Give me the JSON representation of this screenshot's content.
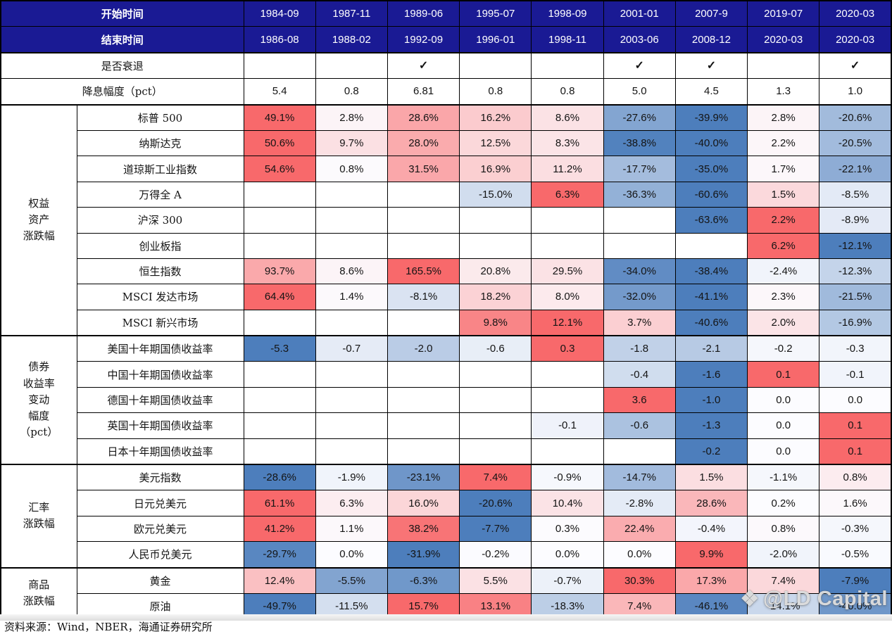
{
  "chart_data": {
    "type": "heatmap-table",
    "title": "",
    "header": {
      "start_label": "开始时间",
      "end_label": "结束时间",
      "recession_label": "是否衰退",
      "cut_label": "降息幅度（pct）",
      "check_glyph": "✓"
    },
    "periods": [
      {
        "start": "1984-09",
        "end": "1986-08",
        "recession": false,
        "cut": "5.4"
      },
      {
        "start": "1987-11",
        "end": "1988-02",
        "recession": false,
        "cut": "0.8"
      },
      {
        "start": "1989-06",
        "end": "1992-09",
        "recession": true,
        "cut": "6.81"
      },
      {
        "start": "1995-07",
        "end": "1996-01",
        "recession": false,
        "cut": "0.8"
      },
      {
        "start": "1998-09",
        "end": "1998-11",
        "recession": false,
        "cut": "0.8"
      },
      {
        "start": "2001-01",
        "end": "2003-06",
        "recession": true,
        "cut": "5.0"
      },
      {
        "start": "2007-9",
        "end": "2008-12",
        "recession": true,
        "cut": "4.5"
      },
      {
        "start": "2019-07",
        "end": "2020-03",
        "recession": false,
        "cut": "1.3"
      },
      {
        "start": "2020-03",
        "end": "2020-03",
        "recession": true,
        "cut": "1.0"
      }
    ],
    "sections": [
      {
        "group": "权益\n资产\n涨跌幅",
        "rows": [
          {
            "label": "标普 500",
            "values": [
              "49.1%",
              "2.8%",
              "28.6%",
              "16.2%",
              "8.6%",
              "-27.6%",
              "-39.9%",
              "2.8%",
              "-20.6%"
            ]
          },
          {
            "label": "纳斯达克",
            "values": [
              "50.6%",
              "9.7%",
              "28.0%",
              "12.5%",
              "8.3%",
              "-38.8%",
              "-40.0%",
              "2.2%",
              "-20.5%"
            ]
          },
          {
            "label": "道琼斯工业指数",
            "values": [
              "54.6%",
              "0.8%",
              "31.5%",
              "16.9%",
              "11.2%",
              "-17.7%",
              "-35.0%",
              "1.7%",
              "-22.1%"
            ]
          },
          {
            "label": "万得全 A",
            "values": [
              "",
              "",
              "",
              "-15.0%",
              "6.3%",
              "-36.3%",
              "-60.6%",
              "1.5%",
              "-8.5%"
            ]
          },
          {
            "label": "沪深 300",
            "values": [
              "",
              "",
              "",
              "",
              "",
              "",
              "-63.6%",
              "2.2%",
              "-8.9%"
            ]
          },
          {
            "label": "创业板指",
            "values": [
              "",
              "",
              "",
              "",
              "",
              "",
              "",
              "6.2%",
              "-12.1%"
            ]
          },
          {
            "label": "恒生指数",
            "values": [
              "93.7%",
              "8.6%",
              "165.5%",
              "20.8%",
              "29.5%",
              "-34.0%",
              "-38.4%",
              "-2.4%",
              "-12.3%"
            ]
          },
          {
            "label": "MSCI 发达市场",
            "values": [
              "64.4%",
              "1.4%",
              "-8.1%",
              "18.2%",
              "8.0%",
              "-32.0%",
              "-41.1%",
              "2.3%",
              "-21.5%"
            ]
          },
          {
            "label": "MSCI 新兴市场",
            "values": [
              "",
              "",
              "",
              "9.8%",
              "12.1%",
              "3.7%",
              "-40.6%",
              "2.0%",
              "-16.9%"
            ]
          }
        ]
      },
      {
        "group": "债券\n收益率\n变动\n幅度\n（pct）",
        "rows": [
          {
            "label": "美国十年期国债收益率",
            "values": [
              "-5.3",
              "-0.7",
              "-2.0",
              "-0.6",
              "0.3",
              "-1.8",
              "-2.1",
              "-0.2",
              "-0.3"
            ]
          },
          {
            "label": "中国十年期国债收益率",
            "values": [
              "",
              "",
              "",
              "",
              "",
              "-0.4",
              "-1.6",
              "0.1",
              "-0.1"
            ]
          },
          {
            "label": "德国十年期国债收益率",
            "values": [
              "",
              "",
              "",
              "",
              "",
              "3.6",
              "-1.0",
              "0.0",
              "0.0"
            ]
          },
          {
            "label": "英国十年期国债收益率",
            "values": [
              "",
              "",
              "",
              "",
              "-0.1",
              "-0.6",
              "-1.3",
              "0.0",
              "0.1"
            ]
          },
          {
            "label": "日本十年期国债收益率",
            "values": [
              "",
              "",
              "",
              "",
              "",
              "",
              "-0.2",
              "0.0",
              "0.1"
            ]
          }
        ]
      },
      {
        "group": "汇率\n涨跌幅",
        "rows": [
          {
            "label": "美元指数",
            "values": [
              "-28.6%",
              "-1.9%",
              "-23.1%",
              "7.4%",
              "-0.9%",
              "-14.7%",
              "1.5%",
              "-1.1%",
              "0.8%"
            ]
          },
          {
            "label": "日元兑美元",
            "values": [
              "61.1%",
              "6.3%",
              "16.0%",
              "-20.6%",
              "10.4%",
              "-2.8%",
              "28.6%",
              "0.2%",
              "1.6%"
            ]
          },
          {
            "label": "欧元兑美元",
            "values": [
              "41.2%",
              "1.1%",
              "38.2%",
              "-7.7%",
              "0.3%",
              "22.4%",
              "-0.4%",
              "0.8%",
              "-0.3%"
            ]
          },
          {
            "label": "人民币兑美元",
            "values": [
              "-29.7%",
              "0.0%",
              "-31.9%",
              "-0.2%",
              "0.0%",
              "0.0%",
              "9.9%",
              "-2.0%",
              "-0.5%"
            ]
          }
        ]
      },
      {
        "group": "商品\n涨跌幅",
        "rows": [
          {
            "label": "黄金",
            "values": [
              "12.4%",
              "-5.5%",
              "-6.3%",
              "5.5%",
              "-0.7%",
              "30.3%",
              "17.3%",
              "7.4%",
              "-7.9%"
            ]
          },
          {
            "label": "原油",
            "values": [
              "-49.7%",
              "-11.5%",
              "15.7%",
              "13.1%",
              "-18.3%",
              "7.4%",
              "-46.1%",
              "-14.1%",
              "-40.0%"
            ]
          }
        ]
      }
    ],
    "color_scale": {
      "negative_min": "#4d7ebc",
      "midpoint_zero": "#fcfcff",
      "positive_max": "#f8696b",
      "empty": "#ffffff",
      "header_navy": "#1a1a94"
    }
  },
  "footer": {
    "source": "资料来源：Wind，NBER，海通证券研究所"
  },
  "watermark": {
    "icon": "diamond-cluster-icon",
    "icon_glyph": "❖",
    "text": "@LD Capital"
  }
}
